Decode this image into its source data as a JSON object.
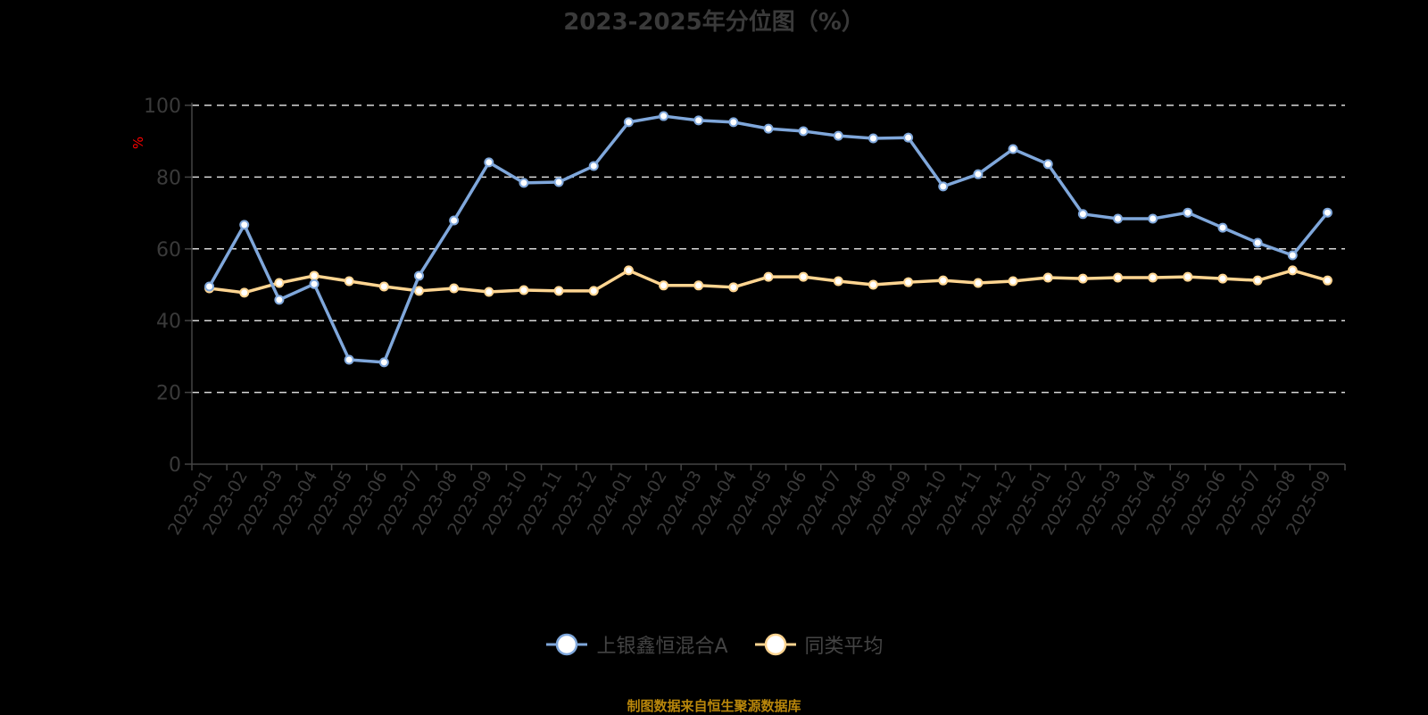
{
  "title": "2023-2025年分位图（%）",
  "source_note": "制图数据来自恒生聚源数据库",
  "legend": [
    {
      "label": "上银鑫恒混合A",
      "color": "#7fa7db"
    },
    {
      "label": "同类平均",
      "color": "#ffd591"
    }
  ],
  "chart_data": {
    "type": "line",
    "title": "2023-2025年分位图（%）",
    "xlabel": "",
    "ylabel": "%",
    "ylim": [
      0,
      100
    ],
    "yticks": [
      0,
      20,
      40,
      60,
      80,
      100
    ],
    "grid": true,
    "legend_position": "bottom",
    "categories": [
      "2023-01",
      "2023-02",
      "2023-03",
      "2023-04",
      "2023-05",
      "2023-06",
      "2023-07",
      "2023-08",
      "2023-09",
      "2023-10",
      "2023-11",
      "2023-12",
      "2024-01",
      "2024-02",
      "2024-03",
      "2024-04",
      "2024-05",
      "2024-06",
      "2024-07",
      "2024-08",
      "2024-09",
      "2024-10",
      "2024-11",
      "2024-12",
      "2025-01",
      "2025-02",
      "2025-03",
      "2025-04",
      "2025-05",
      "2025-06",
      "2025-07",
      "2025-08",
      "2025-09"
    ],
    "series": [
      {
        "name": "上银鑫恒混合A",
        "color": "#7fa7db",
        "values": [
          49.5,
          66.7,
          45.8,
          50.2,
          29.1,
          28.4,
          52.5,
          67.9,
          84.1,
          78.4,
          78.6,
          83.1,
          95.3,
          97.0,
          95.8,
          95.3,
          93.5,
          92.8,
          91.5,
          90.8,
          91.0,
          77.4,
          80.8,
          87.8,
          83.6,
          69.7,
          68.4,
          68.4,
          70.1,
          65.9,
          61.7,
          58.2,
          70.1
        ]
      },
      {
        "name": "同类平均",
        "color": "#ffd591",
        "values": [
          49.0,
          47.8,
          50.5,
          52.5,
          51.0,
          49.5,
          48.3,
          49.0,
          48.0,
          48.5,
          48.3,
          48.3,
          54.0,
          49.8,
          49.8,
          49.3,
          52.2,
          52.2,
          51.0,
          50.0,
          50.7,
          51.2,
          50.5,
          51.0,
          52.0,
          51.7,
          52.0,
          52.0,
          52.2,
          51.7,
          51.2,
          54.0,
          51.2
        ]
      }
    ]
  }
}
